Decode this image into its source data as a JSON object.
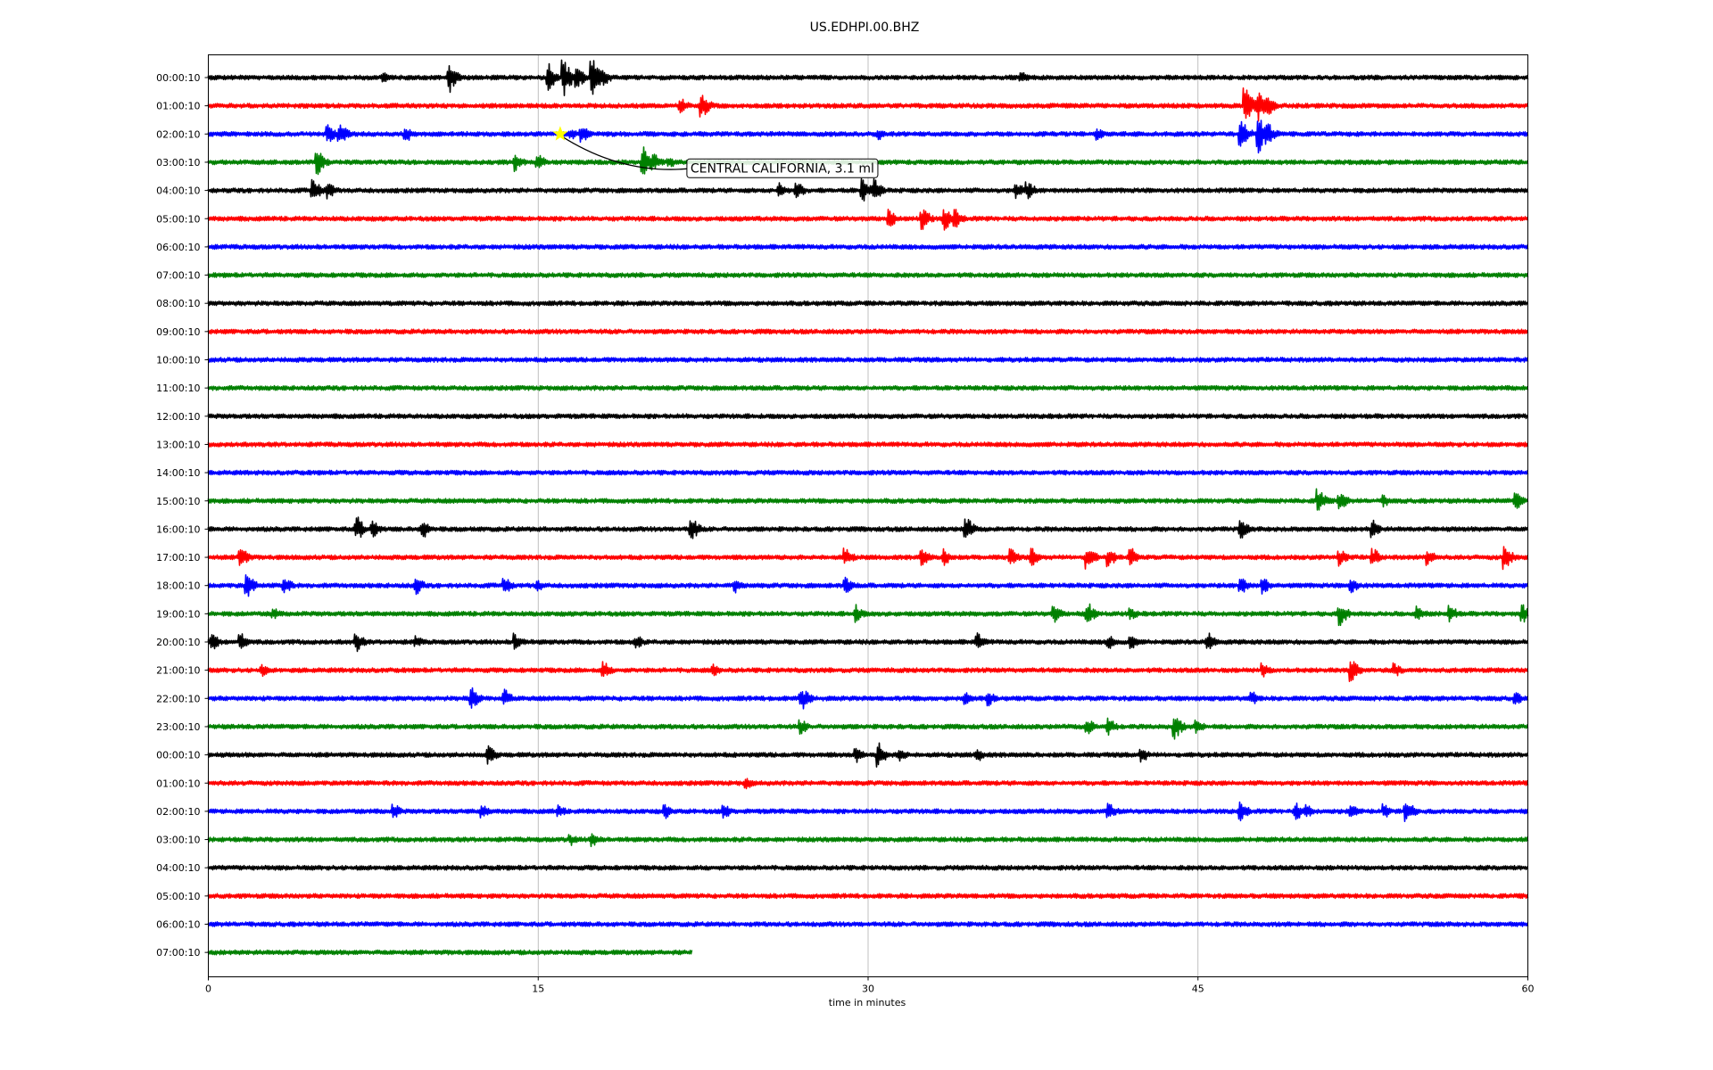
{
  "chart_data": {
    "type": "line",
    "title": "US.EDHPI.00.BHZ",
    "xlabel": "time in minutes",
    "ylabel": "",
    "xlim": [
      0,
      60
    ],
    "x_ticks": [
      "0",
      "15",
      "30",
      "45",
      "60"
    ],
    "grid": "vertical",
    "colors": [
      "#000000",
      "#ff0000",
      "#0000ff",
      "#008000"
    ],
    "rows": [
      {
        "label": "00:00:10",
        "events": [
          [
            8,
            1
          ],
          [
            11,
            2.5
          ],
          [
            15.5,
            2.5
          ],
          [
            16.2,
            3
          ],
          [
            16.8,
            2
          ],
          [
            17.5,
            3
          ],
          [
            18,
            1.5
          ],
          [
            37,
            1
          ]
        ]
      },
      {
        "label": "01:00:10",
        "events": [
          [
            21.5,
            1.5
          ],
          [
            22.5,
            2
          ],
          [
            47.2,
            3
          ],
          [
            47.8,
            2.5
          ],
          [
            48.2,
            2
          ]
        ]
      },
      {
        "label": "02:00:10",
        "events": [
          [
            5.5,
            1.5
          ],
          [
            6,
            2
          ],
          [
            9,
            1.5
          ],
          [
            16.5,
            1
          ],
          [
            17,
            1.5
          ],
          [
            30.5,
            1
          ],
          [
            40.5,
            1
          ],
          [
            47,
            2.5
          ],
          [
            47.8,
            3
          ],
          [
            48.2,
            2
          ]
        ]
      },
      {
        "label": "03:00:10",
        "events": [
          [
            5,
            2
          ],
          [
            14,
            1.5
          ],
          [
            15,
            1.5
          ],
          [
            19.8,
            2.5
          ],
          [
            20.3,
            1.5
          ],
          [
            21,
            1
          ]
        ]
      },
      {
        "label": "04:00:10",
        "events": [
          [
            4.8,
            2
          ],
          [
            5.5,
            1.5
          ],
          [
            26,
            1.5
          ],
          [
            26.8,
            1.5
          ],
          [
            29.8,
            2
          ],
          [
            30.3,
            2
          ],
          [
            36.8,
            1.5
          ],
          [
            37.3,
            1.5
          ]
        ]
      },
      {
        "label": "05:00:10",
        "events": [
          [
            31,
            1.5
          ],
          [
            32.5,
            2
          ],
          [
            33.5,
            2
          ],
          [
            34,
            1.5
          ]
        ]
      },
      {
        "label": "06:00:10",
        "events": []
      },
      {
        "label": "07:00:10",
        "events": []
      },
      {
        "label": "08:00:10",
        "events": []
      },
      {
        "label": "09:00:10",
        "events": []
      },
      {
        "label": "10:00:10",
        "events": []
      },
      {
        "label": "11:00:10",
        "events": []
      },
      {
        "label": "12:00:10",
        "events": []
      },
      {
        "label": "13:00:10",
        "events": []
      },
      {
        "label": "14:00:10",
        "events": []
      },
      {
        "label": "15:00:10",
        "events": [
          [
            50.5,
            2
          ],
          [
            51.5,
            1.5
          ],
          [
            53.5,
            1
          ],
          [
            59.5,
            1.5
          ]
        ]
      },
      {
        "label": "16:00:10",
        "events": [
          [
            6.8,
            2
          ],
          [
            7.5,
            1.5
          ],
          [
            9.8,
            1.5
          ],
          [
            22,
            2
          ],
          [
            34.5,
            2
          ],
          [
            47,
            1.5
          ],
          [
            53,
            1.5
          ]
        ]
      },
      {
        "label": "17:00:10",
        "events": [
          [
            1.5,
            2
          ],
          [
            29,
            1.5
          ],
          [
            32.5,
            1.5
          ],
          [
            33.5,
            1.5
          ],
          [
            36.5,
            1.5
          ],
          [
            37.5,
            1.5
          ],
          [
            40,
            2
          ],
          [
            41,
            1.5
          ],
          [
            42,
            1.5
          ],
          [
            51.5,
            1.5
          ],
          [
            53,
            1.5
          ],
          [
            55.5,
            1.5
          ],
          [
            59,
            2
          ]
        ]
      },
      {
        "label": "18:00:10",
        "events": [
          [
            1.8,
            2
          ],
          [
            3.5,
            1.5
          ],
          [
            9.5,
            1.5
          ],
          [
            13.5,
            1.5
          ],
          [
            15,
            1
          ],
          [
            24,
            1.2
          ],
          [
            29,
            1.5
          ],
          [
            47,
            1.5
          ],
          [
            48,
            1.5
          ],
          [
            52,
            1.5
          ]
        ]
      },
      {
        "label": "19:00:10",
        "events": [
          [
            3,
            1
          ],
          [
            29.5,
            1.5
          ],
          [
            38.5,
            1.5
          ],
          [
            40,
            2
          ],
          [
            42,
            1
          ],
          [
            51.5,
            2
          ],
          [
            55,
            1.5
          ],
          [
            56.5,
            1.5
          ],
          [
            59.8,
            1.5
          ]
        ]
      },
      {
        "label": "20:00:10",
        "events": [
          [
            0.2,
            1.5
          ],
          [
            1.5,
            1.5
          ],
          [
            6.8,
            1.5
          ],
          [
            9.5,
            1
          ],
          [
            14,
            1.5
          ],
          [
            19.5,
            1.2
          ],
          [
            35,
            1.5
          ],
          [
            41,
            1.2
          ],
          [
            42,
            1.2
          ],
          [
            45.5,
            1.5
          ]
        ]
      },
      {
        "label": "21:00:10",
        "events": [
          [
            2.5,
            1
          ],
          [
            18,
            1.5
          ],
          [
            23,
            1
          ],
          [
            48,
            1.2
          ],
          [
            52,
            2
          ],
          [
            54,
            1.2
          ]
        ]
      },
      {
        "label": "22:00:10",
        "events": [
          [
            12,
            2
          ],
          [
            13.5,
            1.5
          ],
          [
            27,
            2
          ],
          [
            34.5,
            1.2
          ],
          [
            35.5,
            1.2
          ],
          [
            47.5,
            1.2
          ],
          [
            59.5,
            1
          ]
        ]
      },
      {
        "label": "23:00:10",
        "events": [
          [
            27,
            1.2
          ],
          [
            40,
            1.5
          ],
          [
            41,
            1.5
          ],
          [
            44,
            2
          ],
          [
            45,
            1.2
          ]
        ]
      },
      {
        "label": "00:00:10",
        "events": [
          [
            12.8,
            1.5
          ],
          [
            29.5,
            1.2
          ],
          [
            30.5,
            2
          ],
          [
            31.5,
            1.2
          ],
          [
            35,
            1.2
          ],
          [
            42.5,
            1.2
          ]
        ]
      },
      {
        "label": "01:00:10",
        "events": [
          [
            24.5,
            1
          ]
        ]
      },
      {
        "label": "02:00:10",
        "events": [
          [
            8.5,
            1.2
          ],
          [
            12.5,
            1.2
          ],
          [
            16,
            1
          ],
          [
            20.8,
            1.2
          ],
          [
            23.5,
            1.2
          ],
          [
            41,
            1.5
          ],
          [
            47,
            1.5
          ],
          [
            49.5,
            1.5
          ],
          [
            50,
            1.2
          ],
          [
            52,
            1.2
          ],
          [
            53.5,
            1.2
          ],
          [
            54.5,
            2
          ]
        ]
      },
      {
        "label": "03:00:10",
        "events": [
          [
            16.5,
            1
          ],
          [
            17.5,
            1.2
          ]
        ]
      },
      {
        "label": "04:00:10",
        "events": []
      },
      {
        "label": "05:00:10",
        "events": []
      },
      {
        "label": "06:00:10",
        "events": []
      },
      {
        "label": "07:00:10",
        "end_minute": 22,
        "events": []
      }
    ],
    "annotation": {
      "text": "CENTRAL CALIFORNIA, 3.1 ml",
      "row": 2,
      "minute": 16,
      "marker": "star",
      "marker_color": "#ffff00"
    }
  }
}
